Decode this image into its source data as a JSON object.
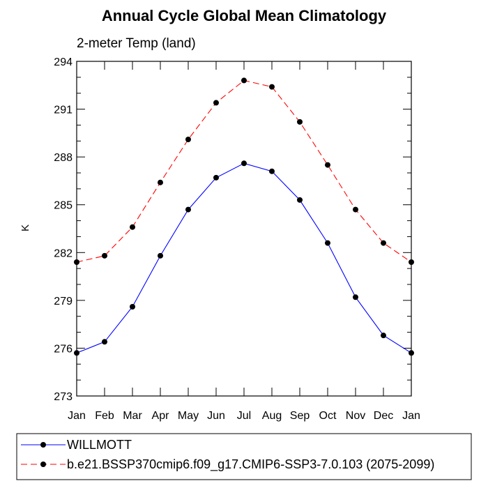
{
  "chart_data": {
    "type": "line",
    "title": "Annual Cycle Global Mean Climatology",
    "subtitle": "2-meter Temp (land)",
    "ylabel": "K",
    "xlabel": "",
    "ylim": [
      273,
      294
    ],
    "y_ticks": [
      273,
      276,
      279,
      282,
      285,
      288,
      291,
      294
    ],
    "categories": [
      "Jan",
      "Feb",
      "Mar",
      "Apr",
      "May",
      "Jun",
      "Jul",
      "Aug",
      "Sep",
      "Oct",
      "Nov",
      "Dec",
      "Jan"
    ],
    "grid": false,
    "legend_position": "bottom",
    "series": [
      {
        "name": "WILLMOTT",
        "color": "#0000ff",
        "dash": "solid",
        "marker": "filled-circle",
        "values": [
          275.7,
          276.4,
          278.6,
          281.8,
          284.7,
          286.7,
          287.6,
          287.1,
          285.3,
          282.6,
          279.2,
          276.8,
          275.7
        ]
      },
      {
        "name": "b.e21.BSSP370cmip6.f09_g17.CMIP6-SSP3-7.0.103 (2075-2099)",
        "color": "#ff0000",
        "dash": "dashed",
        "marker": "filled-circle",
        "values": [
          281.4,
          281.8,
          283.6,
          286.4,
          289.1,
          291.4,
          292.8,
          292.4,
          290.2,
          287.5,
          284.7,
          282.6,
          281.4
        ]
      }
    ]
  }
}
